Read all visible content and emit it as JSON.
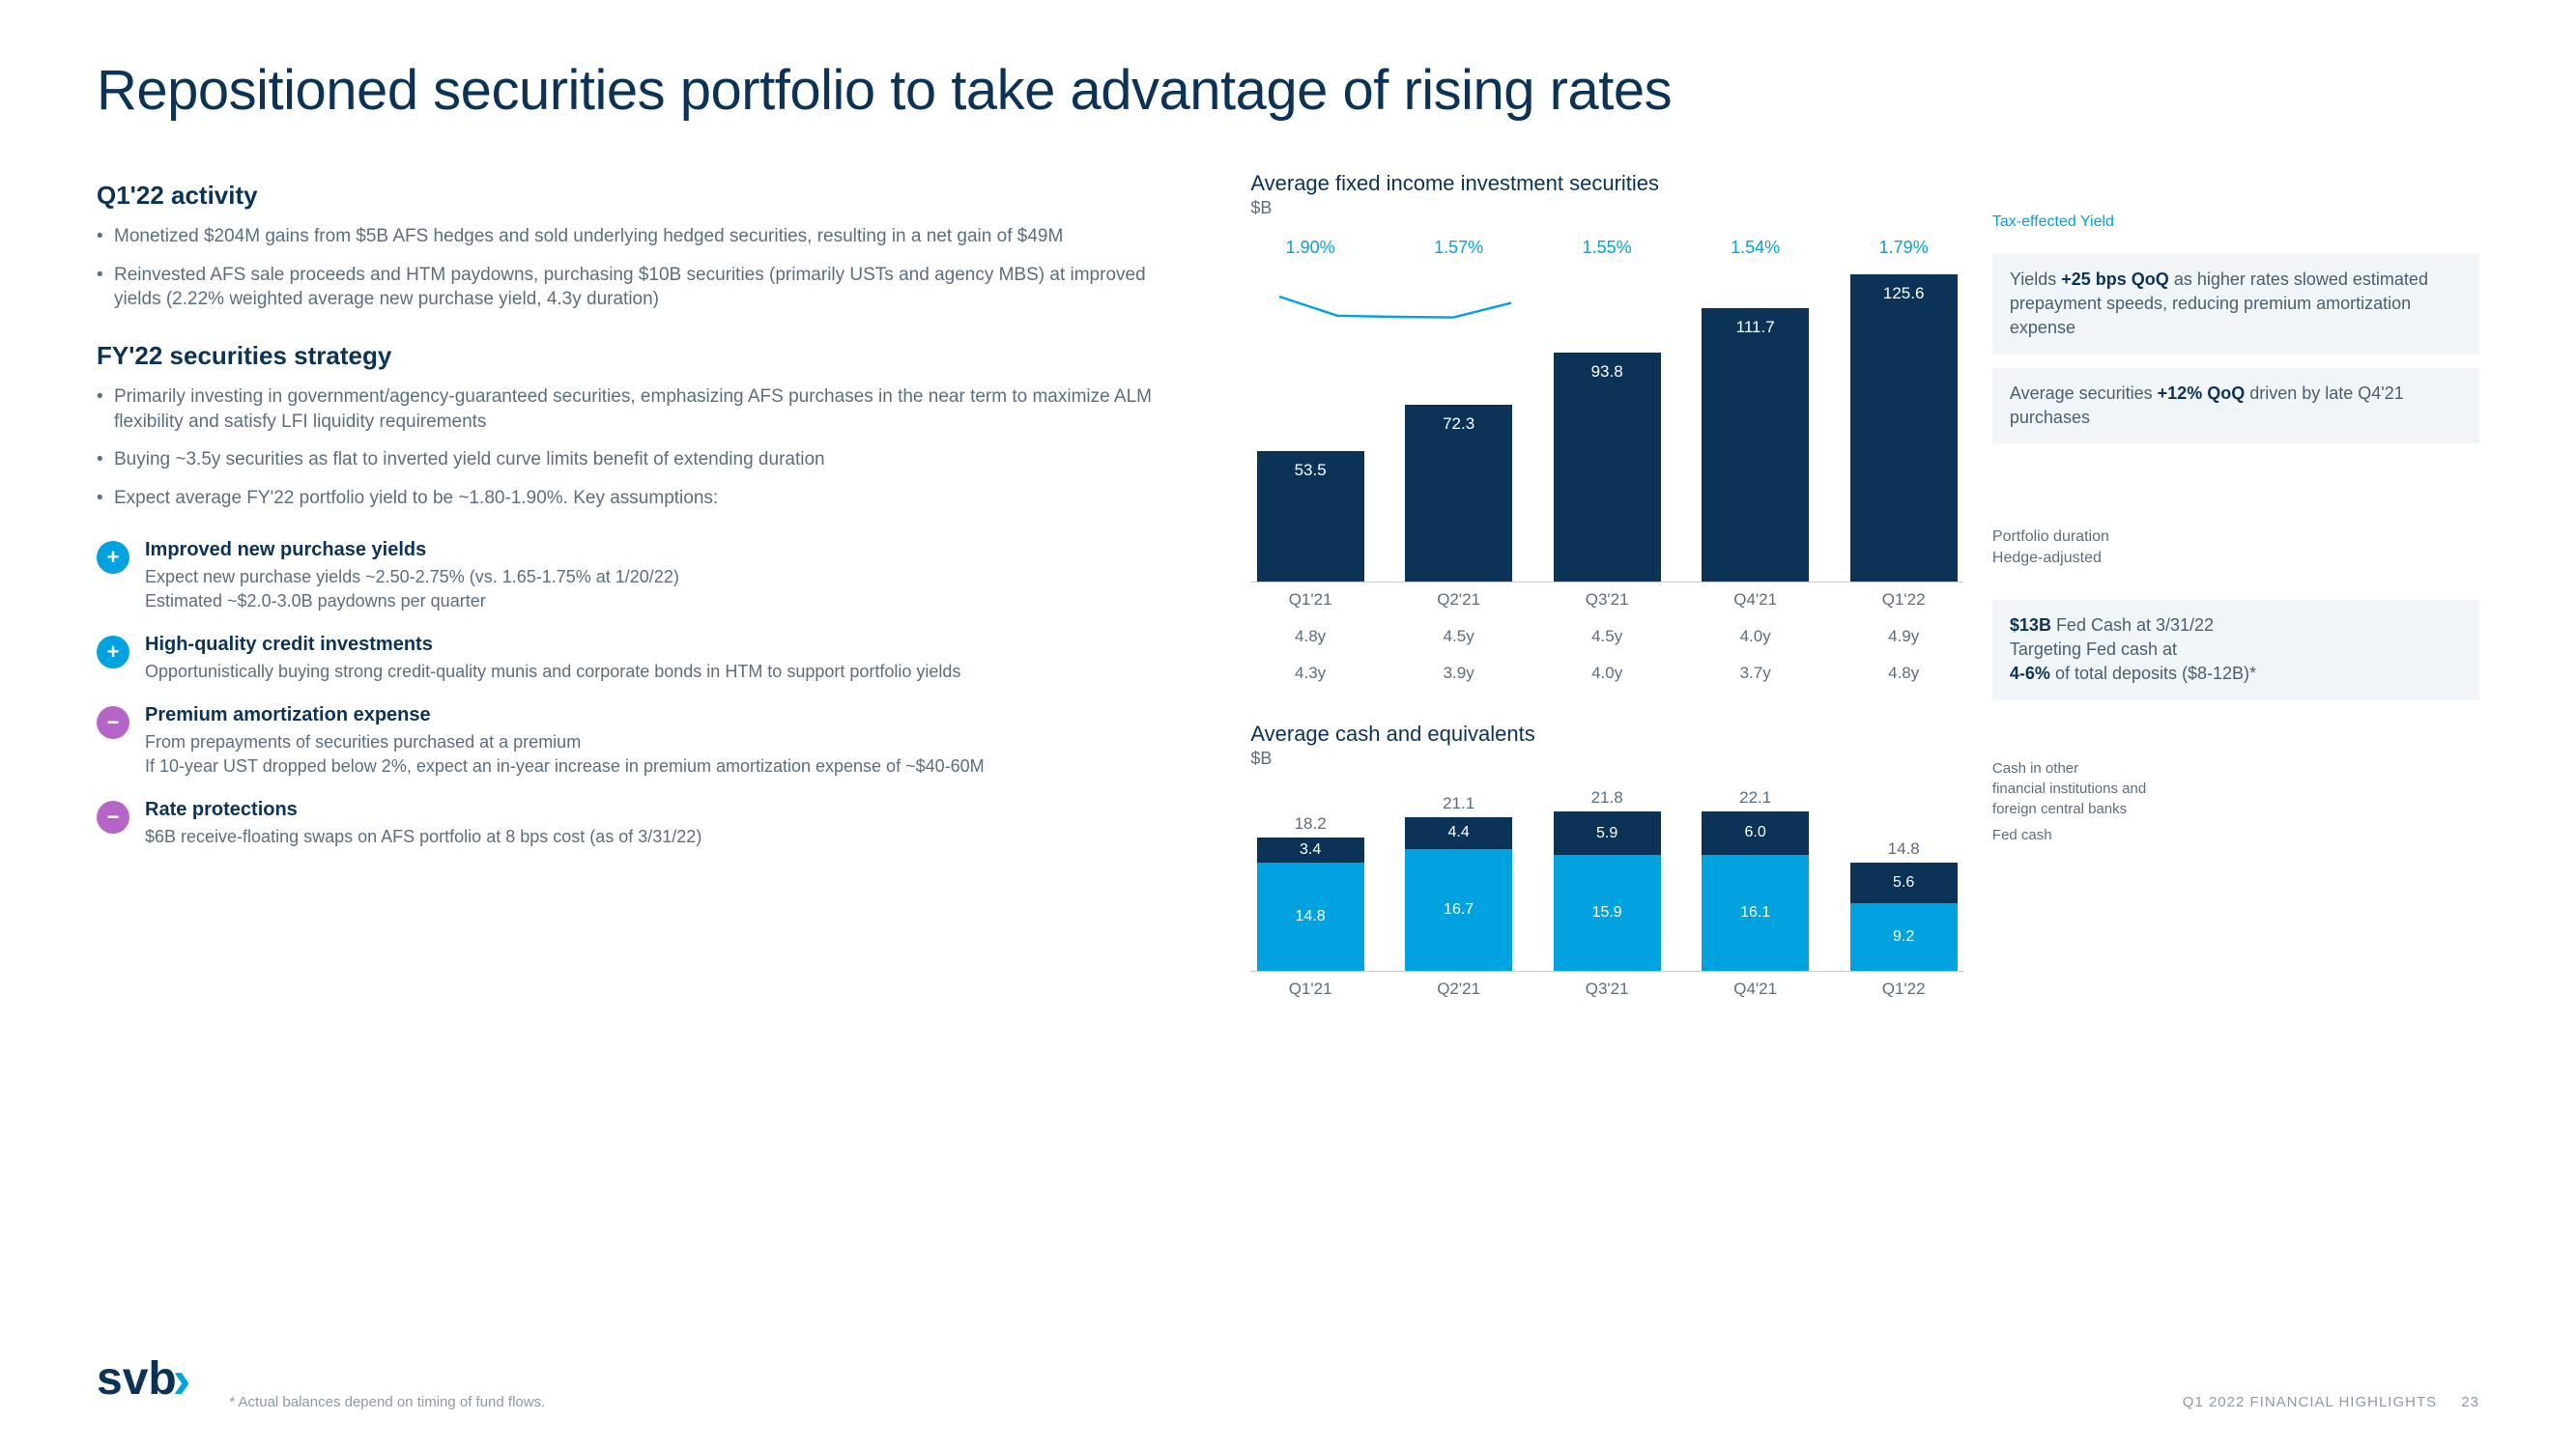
{
  "title": "Repositioned securities portfolio to take advantage of rising rates",
  "left": {
    "activity_head": "Q1'22 activity",
    "activity_bullets": [
      "Monetized $204M gains from $5B AFS hedges and sold underlying hedged securities, resulting in a net gain of $49M",
      "Reinvested AFS sale proceeds and HTM paydowns, purchasing $10B securities (primarily USTs and agency MBS) at improved yields (2.22% weighted average new purchase yield, 4.3y duration)"
    ],
    "strategy_head": "FY'22 securities strategy",
    "strategy_bullets": [
      "Primarily investing in government/agency-guaranteed securities, emphasizing AFS purchases in the near term to maximize ALM flexibility and satisfy LFI liquidity requirements",
      "Buying ~3.5y securities as flat to inverted yield curve limits benefit of extending duration",
      "Expect average FY'22 portfolio yield to be ~1.80-1.90%. Key assumptions:"
    ],
    "items": [
      {
        "sign": "+",
        "color": "plus",
        "title": "Improved new purchase yields",
        "desc": "Expect new purchase yields ~2.50-2.75% (vs. 1.65-1.75% at 1/20/22)\nEstimated ~$2.0-3.0B paydowns per quarter"
      },
      {
        "sign": "+",
        "color": "plus",
        "title": "High-quality credit investments",
        "desc": "Opportunistically buying strong credit-quality munis and corporate bonds in HTM to support portfolio yields"
      },
      {
        "sign": "−",
        "color": "minus",
        "title": "Premium amortization expense",
        "desc": "From prepayments of securities purchased at a premium\nIf 10-year UST dropped below 2%, expect an in-year increase in premium amortization expense of ~$40-60M"
      },
      {
        "sign": "−",
        "color": "minus",
        "title": "Rate protections",
        "desc": "$6B receive-floating swaps on AFS portfolio at 8 bps cost (as of 3/31/22)"
      }
    ]
  },
  "chart1": {
    "title": "Average fixed income investment securities",
    "sub": "$B",
    "yield_legend": "Tax-effected Yield",
    "categories": [
      "Q1'21",
      "Q2'21",
      "Q3'21",
      "Q4'21",
      "Q1'22"
    ],
    "values": [
      53.5,
      72.3,
      93.8,
      111.7,
      125.6
    ],
    "yields": [
      "1.90%",
      "1.57%",
      "1.55%",
      "1.54%",
      "1.79%"
    ],
    "max": 130,
    "bar_color": "#0b3358",
    "line_color": "#00a3e0",
    "duration_label1": "Portfolio duration",
    "duration_label2": "Hedge-adjusted",
    "duration1": [
      "4.8y",
      "4.5y",
      "4.5y",
      "4.0y",
      "4.9y"
    ],
    "duration2": [
      "4.3y",
      "3.9y",
      "4.0y",
      "3.7y",
      "4.8y"
    ]
  },
  "callouts_top": [
    "Yields <strong>+25 bps QoQ</strong> as higher rates slowed estimated prepayment speeds, reducing premium amortization expense",
    "Average securities <strong>+12% QoQ</strong> driven by late Q4'21 purchases"
  ],
  "chart2": {
    "title": "Average cash and equivalents",
    "sub": "$B",
    "categories": [
      "Q1'21",
      "Q2'21",
      "Q3'21",
      "Q4'21",
      "Q1'22"
    ],
    "totals": [
      18.2,
      21.1,
      21.8,
      22.1,
      14.8
    ],
    "top_vals": [
      3.4,
      4.4,
      5.9,
      6.0,
      5.6
    ],
    "bot_vals": [
      14.8,
      16.7,
      15.9,
      16.1,
      9.2
    ],
    "max": 25,
    "top_color": "#0b3358",
    "bot_color": "#00a3e0",
    "legend_top": "Cash in other\nfinancial institutions and\nforeign central banks",
    "legend_bot": "Fed cash"
  },
  "callouts_mid": [
    "<strong>$13B</strong> Fed Cash at 3/31/22<br>Targeting Fed cash at<br><strong>4-6%</strong> of total deposits ($8-12B)*"
  ],
  "footer": {
    "logo": "svb",
    "footnote": "* Actual balances depend on timing of fund flows.",
    "right": "Q1 2022 FINANCIAL HIGHLIGHTS",
    "page": "23"
  }
}
